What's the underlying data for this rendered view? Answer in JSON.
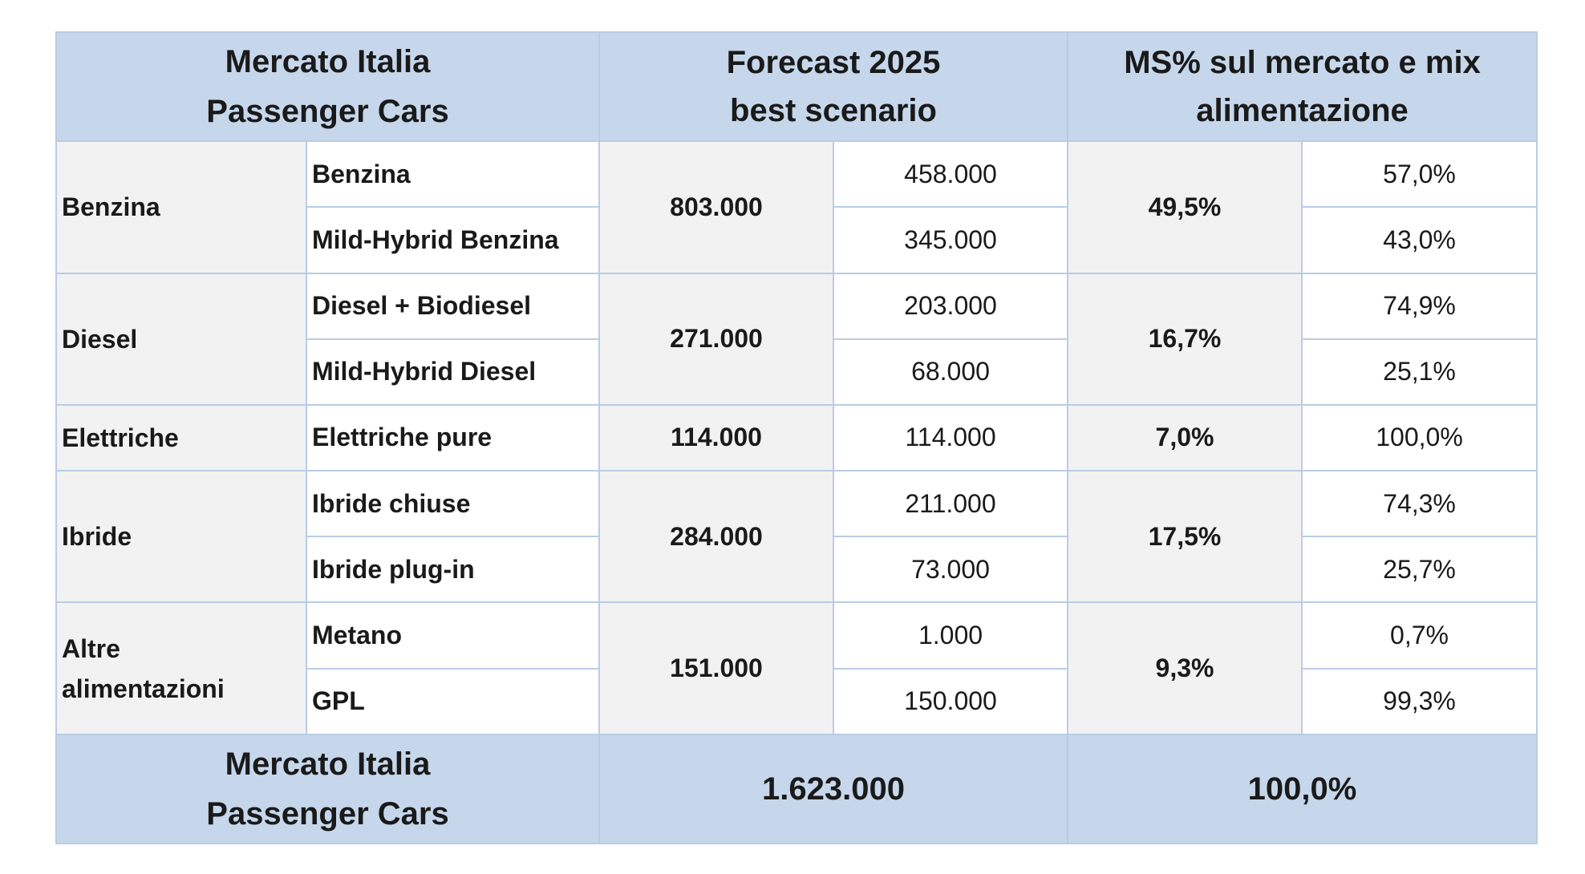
{
  "header": {
    "market_line1": "Mercato Italia",
    "market_line2": "Passenger Cars",
    "forecast_line1": "Forecast 2025",
    "forecast_line2": "best scenario",
    "ms_line1": "MS% sul mercato e mix",
    "ms_line2": "alimentazione"
  },
  "groups": [
    {
      "category": "Benzina",
      "total": "803.000",
      "market_share": "49,5%",
      "rows": [
        {
          "sub": "Benzina",
          "value": "458.000",
          "mix": "57,0%"
        },
        {
          "sub": "Mild-Hybrid Benzina",
          "value": "345.000",
          "mix": "43,0%"
        }
      ]
    },
    {
      "category": "Diesel",
      "total": "271.000",
      "market_share": "16,7%",
      "rows": [
        {
          "sub": "Diesel + Biodiesel",
          "value": "203.000",
          "mix": "74,9%"
        },
        {
          "sub": "Mild-Hybrid Diesel",
          "value": "68.000",
          "mix": "25,1%"
        }
      ]
    },
    {
      "category": "Elettriche",
      "total": "114.000",
      "market_share": "7,0%",
      "rows": [
        {
          "sub": "Elettriche pure",
          "value": "114.000",
          "mix": "100,0%"
        }
      ]
    },
    {
      "category": "Ibride",
      "total": "284.000",
      "market_share": "17,5%",
      "rows": [
        {
          "sub": "Ibride chiuse",
          "value": "211.000",
          "mix": "74,3%"
        },
        {
          "sub": "Ibride plug-in",
          "value": "73.000",
          "mix": "25,7%"
        }
      ]
    },
    {
      "category_line1": "Altre",
      "category_line2": "alimentazioni",
      "total": "151.000",
      "market_share": "9,3%",
      "rows": [
        {
          "sub": "Metano",
          "value": "1.000",
          "mix": "0,7%"
        },
        {
          "sub": "GPL",
          "value": "150.000",
          "mix": "99,3%"
        }
      ]
    }
  ],
  "footer": {
    "market_line1": "Mercato Italia",
    "market_line2": "Passenger Cars",
    "total": "1.623.000",
    "share": "100,0%"
  },
  "colors": {
    "header_bg": "#c6d7eb",
    "category_bg": "#f2f2f2",
    "border": "#b9cce4"
  }
}
